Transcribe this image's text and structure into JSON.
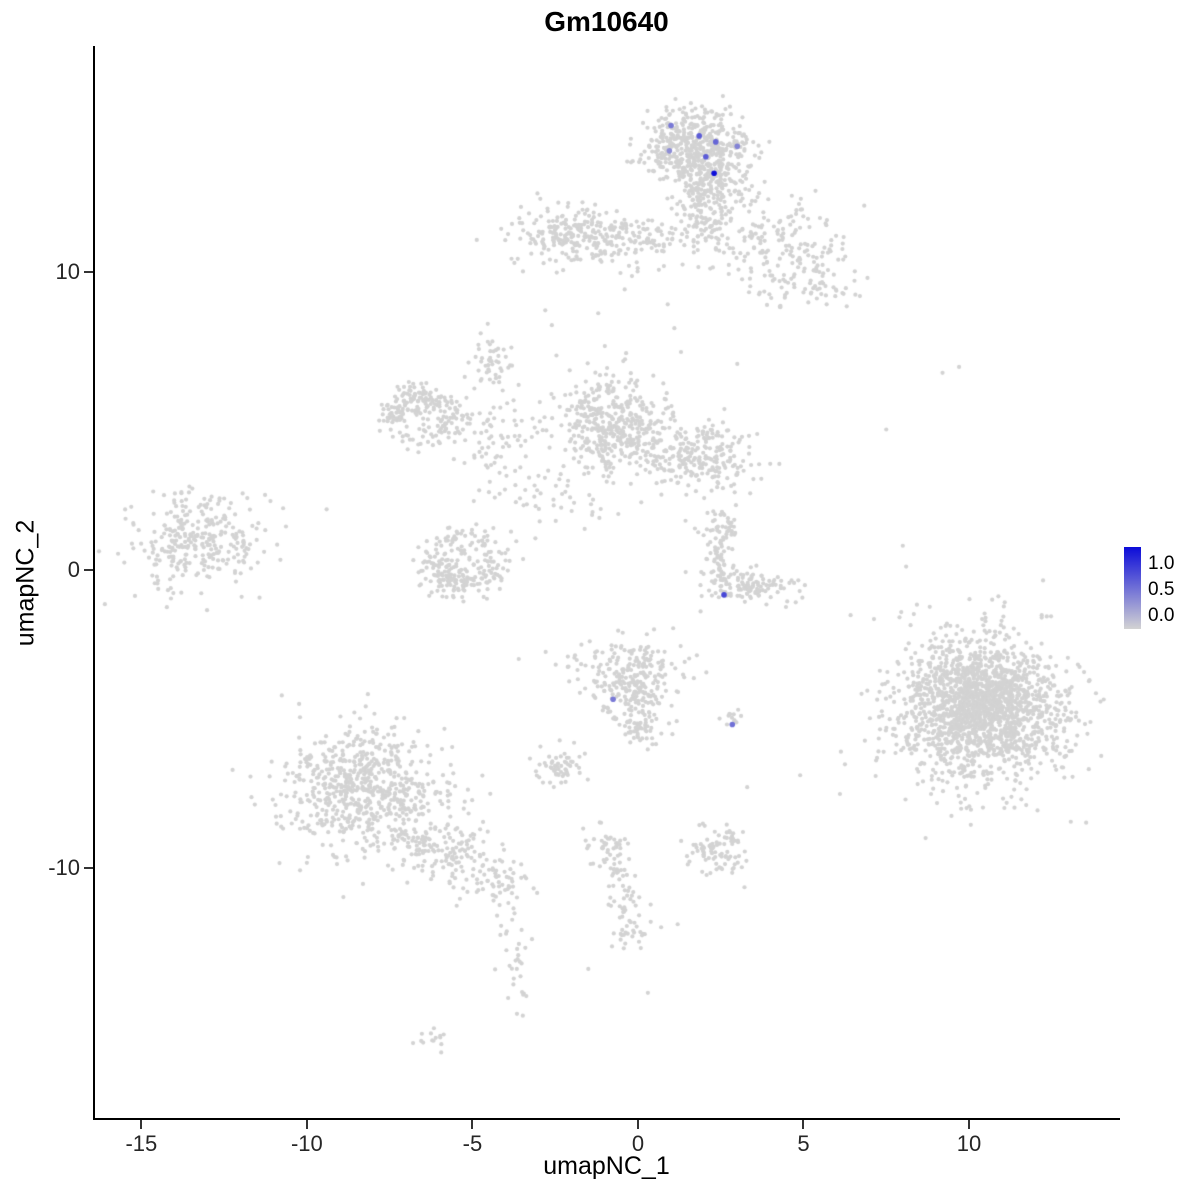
{
  "title": "Gm10640",
  "axes": {
    "x": {
      "label": "umapNC_1",
      "ticks": [
        -15,
        -10,
        -5,
        0,
        5,
        10
      ]
    },
    "y": {
      "label": "umapNC_2",
      "ticks": [
        10,
        0,
        -10
      ]
    }
  },
  "legend": {
    "labels": [
      "1.0",
      "0.5",
      "0.0"
    ],
    "color_high": "#0c0cd9",
    "color_low": "#d3d3d3"
  },
  "chart_data": {
    "type": "scatter",
    "title": "Gm10640",
    "xlabel": "umapNC_1",
    "ylabel": "umapNC_2",
    "xlim": [
      -16.4,
      14.5
    ],
    "ylim": [
      -18.4,
      17.5
    ],
    "grid": false,
    "legend_position": "right",
    "point_color_zero": "#d3d3d3",
    "point_color_max": "#0c0cd9",
    "point_radius": 2.1,
    "clusters": [
      {
        "name": "top-main",
        "n": 430,
        "cx": 1.6,
        "cy": 14.3,
        "sx": 0.85,
        "sy": 0.55
      },
      {
        "name": "top-main-lower",
        "n": 230,
        "cx": 2.1,
        "cy": 13.0,
        "sx": 0.6,
        "sy": 0.6
      },
      {
        "name": "top-bridge",
        "n": 70,
        "cx": 2.1,
        "cy": 11.8,
        "sx": 0.4,
        "sy": 0.7
      },
      {
        "name": "top-right-spray",
        "n": 170,
        "cx": 4.2,
        "cy": 10.9,
        "sx": 1.0,
        "sy": 0.85
      },
      {
        "name": "top-right-arm",
        "n": 60,
        "cx": 5.3,
        "cy": 9.7,
        "sx": 0.7,
        "sy": 0.5
      },
      {
        "name": "upper-left-band",
        "n": 240,
        "cx": -1.9,
        "cy": 11.2,
        "sx": 1.0,
        "sy": 0.5
      },
      {
        "name": "upper-band-right",
        "n": 90,
        "cx": 0.2,
        "cy": 11.0,
        "sx": 0.8,
        "sy": 0.45
      },
      {
        "name": "mid-left-lobe",
        "n": 380,
        "cx": -0.9,
        "cy": 4.9,
        "sx": 0.75,
        "sy": 0.85
      },
      {
        "name": "mid-right-lobe",
        "n": 210,
        "cx": 2.0,
        "cy": 3.8,
        "sx": 0.8,
        "sy": 0.55
      },
      {
        "name": "mid-bridge",
        "n": 70,
        "cx": 0.6,
        "cy": 4.3,
        "sx": 0.6,
        "sy": 0.5
      },
      {
        "name": "left-swirl-ring",
        "type": "ring",
        "n": 150,
        "cx": -6.5,
        "cy": 5.1,
        "r": 0.95,
        "jitter": 0.28,
        "ry": 0.75
      },
      {
        "name": "left-swirl-core",
        "n": 60,
        "cx": -6.8,
        "cy": 5.6,
        "sx": 0.45,
        "sy": 0.35
      },
      {
        "name": "swirl-mid-spray",
        "n": 90,
        "cx": -4.3,
        "cy": 4.1,
        "sx": 0.85,
        "sy": 0.95
      },
      {
        "name": "lower-swirl-ring",
        "type": "ring",
        "n": 170,
        "cx": -5.2,
        "cy": 0.3,
        "r": 1.0,
        "jitter": 0.3,
        "ry": 0.8
      },
      {
        "name": "lower-swirl-core",
        "n": 70,
        "cx": -5.8,
        "cy": -0.1,
        "sx": 0.5,
        "sy": 0.4
      },
      {
        "name": "far-left",
        "n": 260,
        "cx": -13.3,
        "cy": 0.9,
        "sx": 0.95,
        "sy": 0.7
      },
      {
        "name": "far-left-halo",
        "n": 40,
        "cx": -13.0,
        "cy": 1.0,
        "sx": 1.5,
        "sy": 1.1
      },
      {
        "name": "crescent-vertical",
        "n": 70,
        "cx": 2.45,
        "cy": 0.7,
        "sx": 0.3,
        "sy": 0.6
      },
      {
        "name": "crescent-horizontal",
        "n": 120,
        "cx": 3.3,
        "cy": -0.6,
        "sx": 0.75,
        "sy": 0.3
      },
      {
        "name": "crescent-tip",
        "n": 25,
        "cx": 2.6,
        "cy": 1.5,
        "sx": 0.25,
        "sy": 0.3
      },
      {
        "name": "mid-lower-top",
        "n": 170,
        "cx": -0.3,
        "cy": -3.3,
        "sx": 0.85,
        "sy": 0.5
      },
      {
        "name": "mid-lower-mid",
        "n": 120,
        "cx": -0.1,
        "cy": -4.4,
        "sx": 0.5,
        "sy": 0.55
      },
      {
        "name": "mid-lower-tail",
        "n": 40,
        "cx": 0.2,
        "cy": -5.4,
        "sx": 0.3,
        "sy": 0.35
      },
      {
        "name": "tiny-pair",
        "n": 12,
        "cx": 2.8,
        "cy": -5.0,
        "sx": 0.2,
        "sy": 0.13
      },
      {
        "name": "right-large",
        "n": 1400,
        "cx": 10.3,
        "cy": -4.7,
        "sx": 1.35,
        "sy": 1.3
      },
      {
        "name": "right-large-core",
        "n": 500,
        "cx": 10.6,
        "cy": -4.4,
        "sx": 0.85,
        "sy": 0.8
      },
      {
        "name": "bottom-left-large",
        "n": 680,
        "cx": -8.3,
        "cy": -7.4,
        "sx": 1.15,
        "sy": 1.05
      },
      {
        "name": "bottom-left-arm",
        "n": 150,
        "cx": -5.9,
        "cy": -9.3,
        "sx": 0.8,
        "sy": 0.55
      },
      {
        "name": "bottom-left-tail",
        "n": 60,
        "cx": -4.4,
        "cy": -10.3,
        "sx": 0.5,
        "sy": 0.4
      },
      {
        "name": "tail-trail",
        "type": "line",
        "n": 35,
        "cx": -4.0,
        "cy": -11.2,
        "x2": -3.5,
        "y2": -14.6,
        "jitter": 0.22
      },
      {
        "name": "tiny-bottom-blob",
        "n": 14,
        "cx": -6.1,
        "cy": -15.8,
        "sx": 0.28,
        "sy": 0.16
      },
      {
        "name": "small-left-blob",
        "n": 55,
        "cx": -2.4,
        "cy": -6.6,
        "sx": 0.4,
        "sy": 0.32
      },
      {
        "name": "mid-tail-knot",
        "n": 45,
        "cx": -0.8,
        "cy": -9.3,
        "sx": 0.35,
        "sy": 0.35
      },
      {
        "name": "mid-vert-tail",
        "type": "line",
        "n": 70,
        "cx": -0.6,
        "cy": -9.9,
        "x2": -0.2,
        "y2": -12.7,
        "jitter": 0.25
      },
      {
        "name": "bottom-mid-cluster",
        "n": 90,
        "cx": 2.4,
        "cy": -9.5,
        "sx": 0.5,
        "sy": 0.38
      },
      {
        "name": "upper-mid-blob",
        "n": 45,
        "cx": -4.4,
        "cy": 7.0,
        "sx": 0.3,
        "sy": 0.45
      },
      {
        "name": "scatter-left-of-mid",
        "n": 35,
        "cx": -2.3,
        "cy": 2.1,
        "sx": 0.9,
        "sy": 0.6
      }
    ],
    "singles": [
      [
        7.5,
        4.7
      ],
      [
        9.2,
        6.6
      ],
      [
        9.7,
        6.8
      ],
      [
        8.0,
        0.8
      ],
      [
        8.1,
        0.1
      ],
      [
        7.9,
        -1.6
      ],
      [
        3.3,
        -7.3
      ],
      [
        4.9,
        -6.9
      ],
      [
        0.7,
        -12.0
      ],
      [
        1.2,
        -11.9
      ],
      [
        -2.8,
        8.7
      ],
      [
        -2.6,
        8.2
      ],
      [
        0.9,
        8.9
      ],
      [
        1.1,
        8.1
      ],
      [
        1.3,
        7.3
      ],
      [
        -1.2,
        8.6
      ],
      [
        -1.0,
        7.5
      ],
      [
        2.0,
        2.4
      ],
      [
        2.1,
        1.9
      ],
      [
        -11.8,
        2.4
      ],
      [
        -11.1,
        2.3
      ],
      [
        5.0,
        9.3
      ],
      [
        5.7,
        8.9
      ],
      [
        6.2,
        10.4
      ],
      [
        -0.4,
        9.4
      ],
      [
        3.0,
        6.9
      ],
      [
        -3.6,
        -3.0
      ],
      [
        -3.2,
        -12.4
      ],
      [
        0.3,
        -14.2
      ],
      [
        -1.5,
        -13.4
      ]
    ],
    "expressing_cells": [
      {
        "x": 1.0,
        "y": 14.9,
        "value": 0.45
      },
      {
        "x": 1.85,
        "y": 14.55,
        "value": 0.6
      },
      {
        "x": 2.35,
        "y": 14.35,
        "value": 0.55
      },
      {
        "x": 3.0,
        "y": 14.2,
        "value": 0.4
      },
      {
        "x": 2.05,
        "y": 13.85,
        "value": 0.6
      },
      {
        "x": 0.95,
        "y": 14.05,
        "value": 0.35
      },
      {
        "x": 2.3,
        "y": 13.3,
        "value": 1.0
      },
      {
        "x": 2.6,
        "y": -0.85,
        "value": 0.7
      },
      {
        "x": -0.75,
        "y": -4.35,
        "value": 0.45
      },
      {
        "x": 2.85,
        "y": -5.2,
        "value": 0.5
      }
    ]
  }
}
